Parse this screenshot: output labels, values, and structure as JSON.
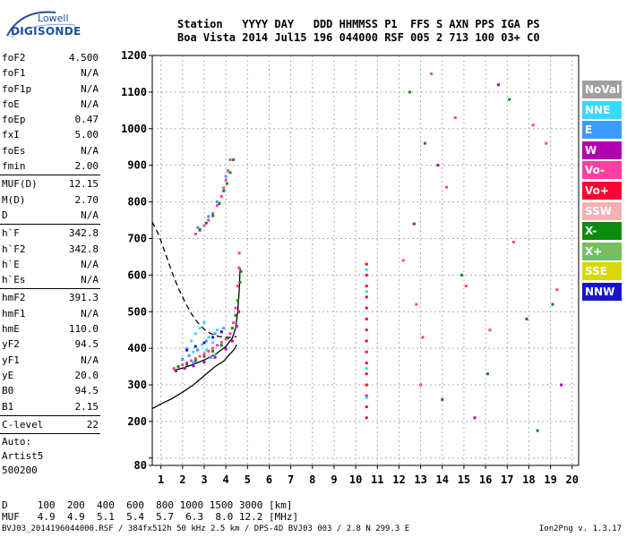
{
  "logo": {
    "top": "Lowell",
    "main": "DIGISONDE"
  },
  "header": {
    "line1": "Station   YYYY DAY   DDD HHMMSS P1  FFS S AXN PPS IGA PS",
    "line2": "Boa Vista 2014 Jul15 196 044000 RSF 005 2 713 100 03+ C0"
  },
  "params": [
    {
      "n": "foF2",
      "v": "4.500"
    },
    {
      "n": "foF1",
      "v": "N/A"
    },
    {
      "n": "foF1p",
      "v": "N/A"
    },
    {
      "n": "foE",
      "v": "N/A"
    },
    {
      "n": "foEp",
      "v": "0.47"
    },
    {
      "n": "fxI",
      "v": "5.00"
    },
    {
      "n": "foEs",
      "v": "N/A"
    },
    {
      "n": "fmin",
      "v": "2.00"
    },
    {
      "sep": true
    },
    {
      "n": "MUF(D)",
      "v": "12.15"
    },
    {
      "n": "M(D)",
      "v": "2.70"
    },
    {
      "n": "D",
      "v": "N/A"
    },
    {
      "sep": true
    },
    {
      "n": "h`F",
      "v": "342.8"
    },
    {
      "n": "h`F2",
      "v": "342.8"
    },
    {
      "n": "h`E",
      "v": "N/A"
    },
    {
      "n": "h`Es",
      "v": "N/A"
    },
    {
      "sep": true
    },
    {
      "n": "hmF2",
      "v": "391.3"
    },
    {
      "n": "hmF1",
      "v": "N/A"
    },
    {
      "n": "hmE",
      "v": "110.0"
    },
    {
      "n": "yF2",
      "v": "94.5"
    },
    {
      "n": "yF1",
      "v": "N/A"
    },
    {
      "n": "yE",
      "v": "20.0"
    },
    {
      "n": "B0",
      "v": "94.5"
    },
    {
      "n": "B1",
      "v": "2.15"
    },
    {
      "sep": true
    },
    {
      "n": "C-level",
      "v": "22"
    },
    {
      "sep": true
    }
  ],
  "auto": {
    "l1": "Auto:",
    "l2": "Artist5",
    "l3": "500200"
  },
  "legend": [
    {
      "label": "NoVal",
      "color": "#a0a0a0"
    },
    {
      "label": "NNE",
      "color": "#38d8ff"
    },
    {
      "label": "E",
      "color": "#3c9bff"
    },
    {
      "label": "W",
      "color": "#b000b0"
    },
    {
      "label": "Vo-",
      "color": "#ff3fa0"
    },
    {
      "label": "Vo+",
      "color": "#ff0030"
    },
    {
      "label": "SSW",
      "color": "#f4b0b0"
    },
    {
      "label": "X-",
      "color": "#0c8c0c"
    },
    {
      "label": "X+",
      "color": "#74c060"
    },
    {
      "label": "SSE",
      "color": "#d8d800"
    },
    {
      "label": "NNW",
      "color": "#1a14c8"
    }
  ],
  "bottom": {
    "line1": "D     100  200  400  600  800 1000 1500 3000 [km]",
    "line2": "MUF   4.9  4.9  5.1  5.4  5.7  6.3  8.0 12.2 [MHz]"
  },
  "footer": "BVJ03_2014196044000.RSF / 384fx512h 50 kHz 2.5 km / DPS-4D BVJ03 003 / 2.8 N 299.3 E",
  "version": "Ion2Png v. 1.3.17",
  "chart_data": {
    "type": "scatter",
    "xlim": [
      0.6,
      20.3
    ],
    "ylim": [
      80,
      1200
    ],
    "xticks": [
      1,
      2,
      3,
      4,
      5,
      6,
      7,
      8,
      9,
      10,
      11,
      12,
      13,
      14,
      15,
      16,
      17,
      18,
      19,
      20
    ],
    "yticks": [
      80,
      100,
      200,
      300,
      400,
      500,
      600,
      700,
      800,
      900,
      1000,
      1100,
      1200
    ],
    "ytick_labels": [
      "80",
      "",
      "200",
      "300",
      "400",
      "500",
      "600",
      "700",
      "800",
      "900",
      "1000",
      "1100",
      "1200"
    ],
    "grid": true,
    "legend_placement": "right",
    "series": [
      {
        "color": "#ff3fa0",
        "points": [
          [
            2.6,
            712
          ],
          [
            2.8,
            722
          ],
          [
            3.0,
            735
          ],
          [
            3.2,
            750
          ],
          [
            3.4,
            768
          ],
          [
            3.6,
            790
          ],
          [
            3.8,
            815
          ],
          [
            3.9,
            838
          ],
          [
            4.0,
            860
          ],
          [
            4.1,
            885
          ],
          [
            4.2,
            915
          ]
        ]
      },
      {
        "color": "#0c8c0c",
        "points": [
          [
            2.8,
            725
          ],
          [
            3.1,
            742
          ],
          [
            3.4,
            762
          ],
          [
            3.7,
            795
          ],
          [
            3.9,
            830
          ],
          [
            4.05,
            850
          ],
          [
            4.2,
            880
          ],
          [
            4.35,
            915
          ]
        ]
      },
      {
        "color": "#3c9bff",
        "points": [
          [
            2.7,
            730
          ],
          [
            3.2,
            760
          ],
          [
            3.6,
            800
          ],
          [
            4.0,
            870
          ]
        ]
      },
      {
        "color": "#ff3fa0",
        "points": [
          [
            1.6,
            345
          ],
          [
            1.8,
            350
          ],
          [
            2.0,
            355
          ],
          [
            2.2,
            360
          ],
          [
            2.4,
            366
          ],
          [
            2.6,
            372
          ],
          [
            2.8,
            378
          ],
          [
            3.0,
            385
          ],
          [
            3.2,
            392
          ],
          [
            3.4,
            400
          ],
          [
            3.6,
            408
          ],
          [
            3.8,
            416
          ],
          [
            4.0,
            425
          ],
          [
            4.2,
            440
          ],
          [
            4.35,
            470
          ],
          [
            4.45,
            510
          ],
          [
            4.55,
            570
          ],
          [
            4.6,
            620
          ],
          [
            4.62,
            660
          ]
        ]
      },
      {
        "color": "#0c8c0c",
        "points": [
          [
            1.8,
            350
          ],
          [
            2.2,
            356
          ],
          [
            2.6,
            366
          ],
          [
            3.0,
            378
          ],
          [
            3.4,
            392
          ],
          [
            3.8,
            408
          ],
          [
            4.1,
            428
          ],
          [
            4.3,
            455
          ],
          [
            4.45,
            490
          ],
          [
            4.55,
            530
          ],
          [
            4.65,
            580
          ],
          [
            4.7,
            610
          ]
        ]
      },
      {
        "color": "#38d8ff",
        "points": [
          [
            2.2,
            400
          ],
          [
            2.4,
            420
          ],
          [
            2.6,
            440
          ],
          [
            2.8,
            455
          ],
          [
            3.0,
            470
          ],
          [
            3.2,
            430
          ],
          [
            3.4,
            415
          ],
          [
            3.6,
            450
          ],
          [
            2.5,
            390
          ],
          [
            2.9,
            410
          ],
          [
            3.1,
            395
          ],
          [
            3.5,
            380
          ]
        ]
      },
      {
        "color": "#3c9bff",
        "points": [
          [
            2.0,
            370
          ],
          [
            2.3,
            380
          ],
          [
            2.7,
            395
          ],
          [
            3.1,
            420
          ],
          [
            3.5,
            440
          ],
          [
            3.9,
            455
          ],
          [
            2.5,
            360
          ],
          [
            3.3,
            375
          ]
        ]
      },
      {
        "color": "#b000b0",
        "points": [
          [
            1.7,
            338
          ],
          [
            2.1,
            345
          ],
          [
            2.5,
            352
          ],
          [
            3.0,
            362
          ],
          [
            3.5,
            375
          ],
          [
            4.0,
            398
          ],
          [
            4.3,
            420
          ],
          [
            4.5,
            460
          ],
          [
            4.6,
            500
          ]
        ]
      },
      {
        "color": "#1a14c8",
        "points": [
          [
            2.2,
            395
          ],
          [
            2.6,
            405
          ],
          [
            3.0,
            415
          ],
          [
            3.4,
            430
          ],
          [
            3.8,
            445
          ]
        ]
      },
      {
        "color": "#ff0030",
        "points": [
          [
            10.5,
            630
          ],
          [
            10.5,
            600
          ],
          [
            10.5,
            570
          ],
          [
            10.5,
            540
          ],
          [
            10.5,
            510
          ],
          [
            10.5,
            480
          ],
          [
            10.5,
            450
          ],
          [
            10.5,
            420
          ],
          [
            10.5,
            390
          ],
          [
            10.5,
            360
          ],
          [
            10.5,
            330
          ],
          [
            10.5,
            300
          ],
          [
            10.5,
            270
          ],
          [
            10.5,
            240
          ],
          [
            10.5,
            210
          ]
        ]
      },
      {
        "color": "#38d8ff",
        "points": [
          [
            10.5,
            615
          ],
          [
            10.5,
            555
          ],
          [
            10.5,
            345
          ],
          [
            10.5,
            265
          ]
        ]
      },
      {
        "color": "#ff3fa0",
        "points": [
          [
            12.2,
            640
          ],
          [
            12.8,
            520
          ],
          [
            13.1,
            430
          ],
          [
            13.5,
            1150
          ],
          [
            14.2,
            840
          ],
          [
            15.1,
            570
          ],
          [
            16.2,
            450
          ],
          [
            17.3,
            690
          ],
          [
            18.2,
            1010
          ],
          [
            18.8,
            960
          ],
          [
            19.3,
            560
          ],
          [
            13.0,
            300
          ],
          [
            14.6,
            1030
          ]
        ]
      },
      {
        "color": "#0c8c0c",
        "points": [
          [
            13.2,
            960
          ],
          [
            14.0,
            260
          ],
          [
            14.9,
            600
          ],
          [
            16.1,
            330
          ],
          [
            17.1,
            1080
          ],
          [
            18.4,
            175
          ],
          [
            19.1,
            520
          ],
          [
            12.5,
            1100
          ]
        ]
      },
      {
        "color": "#b000b0",
        "points": [
          [
            12.7,
            740
          ],
          [
            13.8,
            900
          ],
          [
            15.5,
            210
          ],
          [
            16.6,
            1120
          ],
          [
            17.9,
            480
          ],
          [
            19.5,
            300
          ]
        ]
      }
    ],
    "curves": [
      {
        "style": "solid",
        "points": [
          [
            0.6,
            235
          ],
          [
            1.0,
            248
          ],
          [
            1.5,
            262
          ],
          [
            2.0,
            280
          ],
          [
            2.5,
            300
          ],
          [
            3.0,
            325
          ],
          [
            3.5,
            350
          ],
          [
            3.9,
            365
          ],
          [
            4.2,
            385
          ],
          [
            4.4,
            398
          ],
          [
            4.5,
            410
          ]
        ]
      },
      {
        "style": "dashed",
        "points": [
          [
            0.6,
            745
          ],
          [
            0.9,
            710
          ],
          [
            1.2,
            660
          ],
          [
            1.5,
            610
          ],
          [
            1.8,
            565
          ],
          [
            2.1,
            528
          ],
          [
            2.4,
            495
          ],
          [
            2.7,
            470
          ],
          [
            3.0,
            452
          ],
          [
            3.3,
            440
          ],
          [
            3.7,
            432
          ],
          [
            4.2,
            430
          ],
          [
            4.5,
            432
          ]
        ]
      },
      {
        "style": "solid",
        "points": [
          [
            1.6,
            340
          ],
          [
            2.0,
            346
          ],
          [
            2.5,
            356
          ],
          [
            3.0,
            368
          ],
          [
            3.5,
            383
          ],
          [
            4.0,
            405
          ],
          [
            4.3,
            428
          ],
          [
            4.45,
            455
          ],
          [
            4.55,
            500
          ],
          [
            4.62,
            560
          ],
          [
            4.66,
            620
          ]
        ]
      }
    ]
  }
}
